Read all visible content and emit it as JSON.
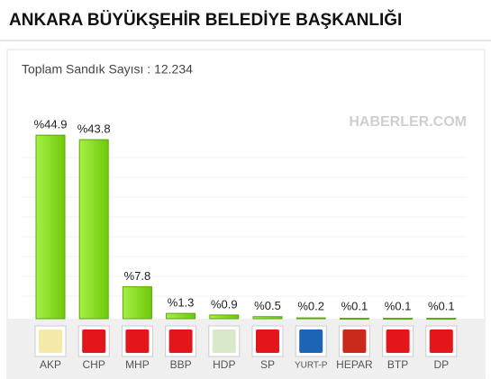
{
  "chart_data": {
    "type": "bar",
    "title": "ANKARA BÜYÜKŞEHİR BELEDİYE BAŞKANLIĞI",
    "subtitle": "Toplam Sandık Sayısı : 12.234",
    "watermark": "HABERLER.COM",
    "categories": [
      "AKP",
      "CHP",
      "MHP",
      "BBP",
      "HDP",
      "SP",
      "YURT-P",
      "HEPAR",
      "BTP",
      "DP"
    ],
    "values": [
      44.9,
      43.8,
      7.8,
      1.3,
      0.9,
      0.5,
      0.2,
      0.1,
      0.1,
      0.1
    ],
    "value_labels": [
      "%44.9",
      "%43.8",
      "%7.8",
      "%1.3",
      "%0.9",
      "%0.5",
      "%0.2",
      "%0.1",
      "%0.1",
      "%0.1"
    ],
    "color": "#8ede2a",
    "ylim": [
      0,
      50
    ]
  }
}
